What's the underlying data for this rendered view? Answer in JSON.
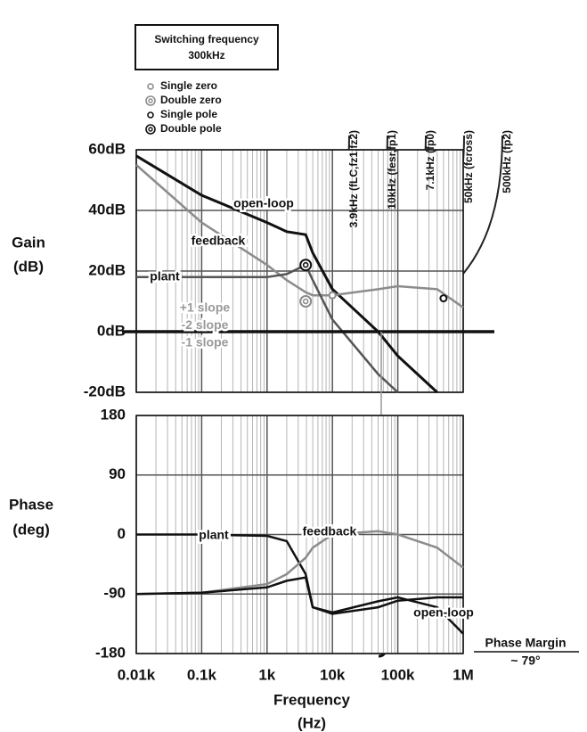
{
  "chart_data": [
    {
      "type": "line",
      "title": [
        "Switching frequency",
        "300kHz"
      ],
      "y_label": [
        "Gain",
        "(dB)"
      ],
      "x": [
        10,
        100,
        1000,
        2000,
        3900,
        5000,
        10000,
        50000,
        100000,
        400000,
        1000000
      ],
      "series": [
        {
          "name": "open-loop",
          "color": "#111111",
          "values": [
            58,
            45,
            36,
            33,
            32,
            26,
            14,
            0,
            -8,
            -20,
            null
          ]
        },
        {
          "name": "feedback",
          "color": "#8c8c8c",
          "values": [
            55,
            36,
            22,
            17,
            13,
            12,
            12,
            14,
            15,
            14,
            8
          ]
        },
        {
          "name": "plant",
          "color": "#555555",
          "values": [
            18,
            18,
            18,
            19,
            22,
            17,
            4,
            -14,
            -20,
            null,
            null
          ]
        }
      ],
      "xlim": [
        10,
        1000000
      ],
      "xticks": [
        10,
        100,
        1000,
        10000,
        100000,
        1000000
      ],
      "log_x": true,
      "ylim": [
        -20,
        60
      ],
      "yticks": [
        {
          "value": -20,
          "label": "-20dB"
        },
        {
          "value": 0,
          "label": "0dB"
        },
        {
          "value": 20,
          "label": "20dB"
        },
        {
          "value": 40,
          "label": "40dB"
        },
        {
          "value": 60,
          "label": "60dB"
        }
      ],
      "grid": true,
      "markers": [
        {
          "name": "Single zero",
          "color": "#8c8c8c",
          "x": [
            10000
          ],
          "y": [
            12
          ]
        },
        {
          "name": "Double zero",
          "color": "#8c8c8c",
          "x": [
            3900
          ],
          "y": [
            10
          ]
        },
        {
          "name": "Single pole",
          "color": "#111111",
          "x": [
            500000
          ],
          "y": [
            11
          ]
        },
        {
          "name": "Double pole",
          "color": "#111111",
          "x": [
            3900
          ],
          "y": [
            22
          ]
        }
      ],
      "frequency_labels": [
        "3.9kHz (fLC,fz1,fz2)",
        "10kHz (fesr,fp1)",
        "7.1kHz (fp0)",
        "50kHz (fcross)",
        "500kHz (fp2)"
      ],
      "slope_labels": [
        "+1 slope",
        "-2 slope",
        "-1 slope"
      ],
      "fcross_label": "fcross"
    },
    {
      "type": "line",
      "y_label": [
        "Phase",
        "(deg)"
      ],
      "x_label": [
        "Frequency",
        "(Hz)"
      ],
      "x": [
        10,
        100,
        1000,
        2000,
        3900,
        5000,
        10000,
        50000,
        100000,
        400000,
        1000000
      ],
      "series": [
        {
          "name": "plant",
          "color": "#111111",
          "values": [
            0,
            0,
            -2,
            -10,
            -60,
            -110,
            -120,
            -110,
            -100,
            -95,
            -95
          ]
        },
        {
          "name": "feedback",
          "color": "#8c8c8c",
          "values": [
            -90,
            -88,
            -75,
            -60,
            -35,
            -20,
            0,
            5,
            0,
            -20,
            -50
          ]
        },
        {
          "name": "open-loop",
          "color": "#111111",
          "values": [
            -90,
            -88,
            -80,
            -70,
            -65,
            -110,
            -118,
            -101,
            -95,
            -110,
            -150
          ]
        }
      ],
      "xlim": [
        10,
        1000000
      ],
      "xticks": [
        {
          "value": 10,
          "label": "0.01k"
        },
        {
          "value": 100,
          "label": "0.1k"
        },
        {
          "value": 1000,
          "label": "1k"
        },
        {
          "value": 10000,
          "label": "10k"
        },
        {
          "value": 100000,
          "label": "100k"
        },
        {
          "value": 1000000,
          "label": "1M"
        }
      ],
      "log_x": true,
      "ylim": [
        -180,
        180
      ],
      "yticks": [
        -180,
        -90,
        0,
        90,
        180
      ],
      "grid": true,
      "annotations": [
        "Phase Margin",
        "~ 79°"
      ]
    }
  ]
}
